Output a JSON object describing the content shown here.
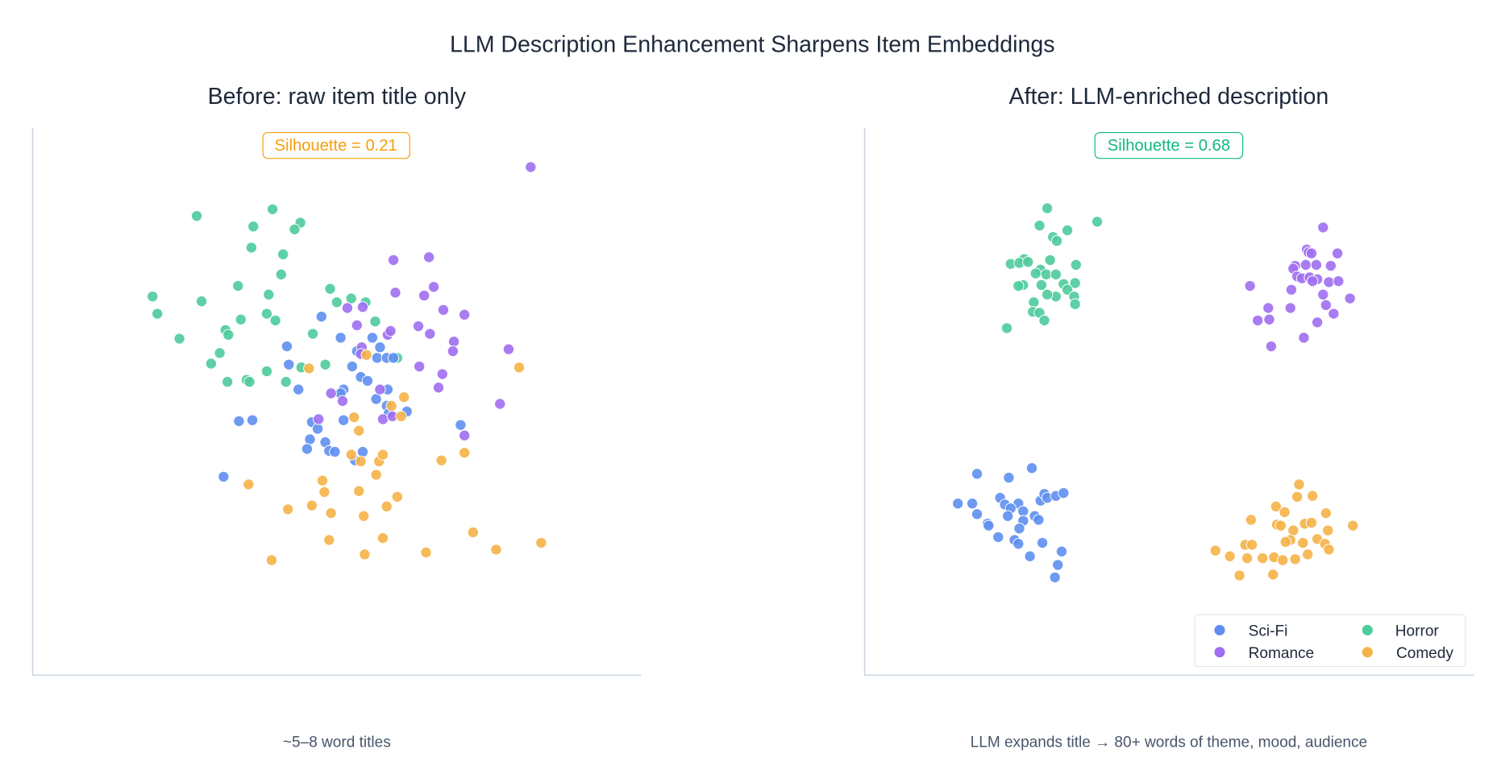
{
  "title": "LLM Description Enhancement Sharpens Item Embeddings",
  "colors": {
    "Sci-Fi": "#5f8ff0",
    "Romance": "#a06ef0",
    "Horror": "#4ecb9c",
    "Comedy": "#f5b347"
  },
  "legend": {
    "placement": "bottom-right of right panel",
    "items": [
      "Sci-Fi",
      "Romance",
      "Horror",
      "Comedy"
    ]
  },
  "chart_data": [
    {
      "type": "scatter",
      "title": "Before:  raw item title only",
      "caption": "~5–8 word titles",
      "annotation": {
        "text": "Silhouette = 0.21",
        "color": "#f59e0b"
      },
      "xlim": [
        -31.7,
        31.7
      ],
      "ylim": [
        -28.6,
        28.5
      ],
      "grid": false,
      "ticks": false,
      "series": [
        {
          "name": "Horror",
          "points": [
            [
              -14.6,
              19.3
            ],
            [
              -6.7,
              20.0
            ],
            [
              -3.8,
              18.6
            ],
            [
              -4.4,
              17.9
            ],
            [
              -8.7,
              18.2
            ],
            [
              -8.9,
              16.0
            ],
            [
              -5.6,
              15.3
            ],
            [
              -5.8,
              13.2
            ],
            [
              -10.3,
              12.0
            ],
            [
              -7.1,
              11.1
            ],
            [
              -19.2,
              10.9
            ],
            [
              -18.7,
              9.1
            ],
            [
              -14.1,
              10.4
            ],
            [
              -16.4,
              6.5
            ],
            [
              -10.0,
              8.5
            ],
            [
              -7.3,
              9.1
            ],
            [
              -6.4,
              8.4
            ],
            [
              -11.6,
              7.4
            ],
            [
              -11.3,
              6.9
            ],
            [
              -12.2,
              5.0
            ],
            [
              -13.1,
              3.9
            ],
            [
              -11.4,
              2.0
            ],
            [
              -9.4,
              2.2
            ],
            [
              -9.1,
              2.0
            ],
            [
              -7.3,
              3.1
            ],
            [
              -5.3,
              2.0
            ],
            [
              -3.7,
              3.5
            ],
            [
              -2.5,
              7.0
            ],
            [
              -1.2,
              3.8
            ],
            [
              -0.7,
              11.7
            ],
            [
              0.0,
              10.3
            ],
            [
              1.5,
              10.7
            ],
            [
              3.0,
              10.3
            ],
            [
              4.0,
              8.3
            ],
            [
              6.3,
              4.5
            ]
          ]
        },
        {
          "name": "Sci-Fi",
          "points": [
            [
              -1.6,
              8.8
            ],
            [
              0.4,
              6.6
            ],
            [
              3.7,
              6.6
            ],
            [
              -5.2,
              5.7
            ],
            [
              -5.0,
              3.8
            ],
            [
              -4.0,
              1.2
            ],
            [
              2.1,
              5.2
            ],
            [
              1.6,
              3.6
            ],
            [
              4.5,
              5.6
            ],
            [
              4.2,
              4.5
            ],
            [
              5.2,
              4.5
            ],
            [
              5.9,
              4.5
            ],
            [
              2.5,
              2.5
            ],
            [
              3.2,
              2.1
            ],
            [
              0.7,
              1.2
            ],
            [
              0.4,
              0.8
            ],
            [
              4.1,
              0.2
            ],
            [
              5.3,
              1.2
            ],
            [
              5.2,
              -0.5
            ],
            [
              5.4,
              -1.3
            ],
            [
              7.3,
              -1.1
            ],
            [
              -10.2,
              -2.1
            ],
            [
              -8.8,
              -2.0
            ],
            [
              -2.6,
              -2.2
            ],
            [
              -2.0,
              -2.9
            ],
            [
              0.7,
              -2.0
            ],
            [
              -2.8,
              -4.0
            ],
            [
              -3.1,
              -5.0
            ],
            [
              -1.2,
              -4.3
            ],
            [
              -0.8,
              -5.2
            ],
            [
              -0.2,
              -5.3
            ],
            [
              2.7,
              -5.3
            ],
            [
              1.9,
              -6.2
            ],
            [
              -11.8,
              -7.9
            ],
            [
              12.9,
              -2.5
            ]
          ]
        },
        {
          "name": "Romance",
          "points": [
            [
              20.2,
              24.4
            ],
            [
              5.9,
              14.7
            ],
            [
              9.6,
              15.0
            ],
            [
              6.1,
              11.3
            ],
            [
              10.1,
              11.9
            ],
            [
              9.1,
              11.0
            ],
            [
              11.1,
              9.5
            ],
            [
              13.3,
              9.0
            ],
            [
              1.1,
              9.7
            ],
            [
              2.7,
              9.8
            ],
            [
              2.1,
              7.9
            ],
            [
              2.6,
              5.6
            ],
            [
              2.5,
              4.9
            ],
            [
              5.3,
              6.9
            ],
            [
              5.6,
              7.3
            ],
            [
              8.5,
              7.8
            ],
            [
              9.7,
              7.0
            ],
            [
              12.2,
              6.2
            ],
            [
              12.1,
              5.2
            ],
            [
              17.9,
              5.4
            ],
            [
              8.6,
              3.6
            ],
            [
              11.0,
              2.8
            ],
            [
              10.6,
              1.4
            ],
            [
              -0.6,
              0.8
            ],
            [
              0.6,
              0.0
            ],
            [
              -1.9,
              -1.9
            ],
            [
              4.5,
              1.2
            ],
            [
              4.8,
              -1.9
            ],
            [
              5.8,
              -1.6
            ],
            [
              17.0,
              -0.3
            ],
            [
              13.3,
              -3.6
            ]
          ]
        },
        {
          "name": "Comedy",
          "points": [
            [
              19.0,
              3.5
            ],
            [
              -2.9,
              3.4
            ],
            [
              3.1,
              4.8
            ],
            [
              7.0,
              0.4
            ],
            [
              5.7,
              -0.5
            ],
            [
              6.7,
              -1.6
            ],
            [
              1.8,
              -1.7
            ],
            [
              2.3,
              -3.1
            ],
            [
              1.5,
              -5.6
            ],
            [
              2.5,
              -6.3
            ],
            [
              4.4,
              -6.3
            ],
            [
              4.8,
              -5.6
            ],
            [
              10.9,
              -6.2
            ],
            [
              13.3,
              -5.4
            ],
            [
              -9.2,
              -8.7
            ],
            [
              -1.5,
              -8.3
            ],
            [
              -1.3,
              -9.5
            ],
            [
              2.3,
              -9.4
            ],
            [
              4.1,
              -7.7
            ],
            [
              6.3,
              -10.0
            ],
            [
              5.2,
              -11.0
            ],
            [
              -5.1,
              -11.3
            ],
            [
              -2.6,
              -10.9
            ],
            [
              -0.6,
              -11.7
            ],
            [
              2.8,
              -12.0
            ],
            [
              -0.8,
              -14.5
            ],
            [
              4.8,
              -14.3
            ],
            [
              14.2,
              -13.7
            ],
            [
              2.9,
              -16.0
            ],
            [
              -6.8,
              -16.6
            ],
            [
              9.3,
              -15.8
            ],
            [
              16.6,
              -15.5
            ],
            [
              21.3,
              -14.8
            ]
          ]
        }
      ]
    },
    {
      "type": "scatter",
      "title": "After:  LLM-enriched description",
      "caption": "LLM expands title → 80+ words of theme, mood, audience",
      "annotation": {
        "text": "Silhouette = 0.68",
        "color": "#10b981"
      },
      "xlim": [
        -31.7,
        31.7
      ],
      "ylim": [
        -28.6,
        28.5
      ],
      "grid": false,
      "ticks": false,
      "series": [
        {
          "name": "Horror",
          "points": [
            [
              -12.7,
              20.1
            ],
            [
              -7.5,
              18.7
            ],
            [
              -13.5,
              18.3
            ],
            [
              -10.6,
              17.8
            ],
            [
              -12.1,
              17.1
            ],
            [
              -11.7,
              16.7
            ],
            [
              -15.1,
              14.8
            ],
            [
              -16.5,
              14.3
            ],
            [
              -15.6,
              14.4
            ],
            [
              -14.7,
              14.5
            ],
            [
              -12.4,
              14.7
            ],
            [
              -9.7,
              14.2
            ],
            [
              -13.4,
              13.7
            ],
            [
              -13.9,
              13.3
            ],
            [
              -12.8,
              13.2
            ],
            [
              -11.8,
              13.2
            ],
            [
              -15.2,
              12.1
            ],
            [
              -15.7,
              12.0
            ],
            [
              -13.3,
              12.1
            ],
            [
              -11.0,
              12.2
            ],
            [
              -9.8,
              12.3
            ],
            [
              -10.6,
              11.6
            ],
            [
              -9.9,
              10.9
            ],
            [
              -9.8,
              10.1
            ],
            [
              -11.8,
              10.9
            ],
            [
              -12.7,
              11.1
            ],
            [
              -14.1,
              10.3
            ],
            [
              -14.2,
              9.3
            ],
            [
              -13.5,
              9.2
            ],
            [
              -13.0,
              8.4
            ],
            [
              -16.9,
              7.6
            ]
          ]
        },
        {
          "name": "Romance",
          "points": [
            [
              16.0,
              18.1
            ],
            [
              14.3,
              15.8
            ],
            [
              14.5,
              15.5
            ],
            [
              14.8,
              15.4
            ],
            [
              17.5,
              15.4
            ],
            [
              13.1,
              14.1
            ],
            [
              12.9,
              13.8
            ],
            [
              14.2,
              14.2
            ],
            [
              15.3,
              14.2
            ],
            [
              16.8,
              14.1
            ],
            [
              13.3,
              13.0
            ],
            [
              13.8,
              12.8
            ],
            [
              14.6,
              12.9
            ],
            [
              15.4,
              12.7
            ],
            [
              16.6,
              12.4
            ],
            [
              17.6,
              12.5
            ],
            [
              14.9,
              12.5
            ],
            [
              12.7,
              11.6
            ],
            [
              8.4,
              12.0
            ],
            [
              16.0,
              11.1
            ],
            [
              18.8,
              10.7
            ],
            [
              10.3,
              9.7
            ],
            [
              12.6,
              9.7
            ],
            [
              16.3,
              10.0
            ],
            [
              17.1,
              9.1
            ],
            [
              9.2,
              8.4
            ],
            [
              10.4,
              8.5
            ],
            [
              15.4,
              8.2
            ],
            [
              14.0,
              6.6
            ],
            [
              10.6,
              5.7
            ]
          ]
        },
        {
          "name": "Sci-Fi",
          "points": [
            [
              -14.3,
              -7.0
            ],
            [
              -20.0,
              -7.6
            ],
            [
              -16.7,
              -8.0
            ],
            [
              -22.0,
              -10.7
            ],
            [
              -20.5,
              -10.7
            ],
            [
              -17.6,
              -10.1
            ],
            [
              -17.1,
              -10.8
            ],
            [
              -15.7,
              -10.7
            ],
            [
              -13.4,
              -10.4
            ],
            [
              -13.0,
              -9.7
            ],
            [
              -12.7,
              -10.1
            ],
            [
              -11.8,
              -9.9
            ],
            [
              -11.0,
              -9.6
            ],
            [
              -15.2,
              -11.5
            ],
            [
              -16.5,
              -11.2
            ],
            [
              -14.0,
              -12.0
            ],
            [
              -13.6,
              -12.4
            ],
            [
              -15.2,
              -12.5
            ],
            [
              -20.0,
              -11.8
            ],
            [
              -18.9,
              -12.8
            ],
            [
              -18.8,
              -13.0
            ],
            [
              -16.8,
              -12.0
            ],
            [
              -15.6,
              -13.3
            ],
            [
              -17.8,
              -14.2
            ],
            [
              -16.1,
              -14.5
            ],
            [
              -15.7,
              -14.9
            ],
            [
              -13.2,
              -14.8
            ],
            [
              -14.5,
              -16.2
            ],
            [
              -11.2,
              -15.7
            ],
            [
              -11.6,
              -17.1
            ],
            [
              -11.9,
              -18.4
            ]
          ]
        },
        {
          "name": "Comedy",
          "points": [
            [
              13.5,
              -8.7
            ],
            [
              13.3,
              -10.0
            ],
            [
              14.9,
              -9.9
            ],
            [
              11.1,
              -11.0
            ],
            [
              12.0,
              -11.6
            ],
            [
              16.3,
              -11.7
            ],
            [
              8.5,
              -12.4
            ],
            [
              11.2,
              -12.9
            ],
            [
              11.6,
              -13.0
            ],
            [
              14.1,
              -12.8
            ],
            [
              14.8,
              -12.7
            ],
            [
              12.9,
              -13.5
            ],
            [
              19.1,
              -13.0
            ],
            [
              16.5,
              -13.5
            ],
            [
              12.6,
              -14.5
            ],
            [
              12.1,
              -14.7
            ],
            [
              13.9,
              -14.8
            ],
            [
              15.4,
              -14.4
            ],
            [
              16.2,
              -14.9
            ],
            [
              4.8,
              -15.6
            ],
            [
              7.9,
              -15.0
            ],
            [
              8.6,
              -15.0
            ],
            [
              16.6,
              -15.5
            ],
            [
              6.3,
              -16.2
            ],
            [
              8.1,
              -16.4
            ],
            [
              9.7,
              -16.4
            ],
            [
              10.9,
              -16.3
            ],
            [
              11.8,
              -16.6
            ],
            [
              13.1,
              -16.5
            ],
            [
              14.4,
              -16.0
            ],
            [
              7.3,
              -18.2
            ],
            [
              10.8,
              -18.1
            ]
          ]
        }
      ]
    }
  ]
}
